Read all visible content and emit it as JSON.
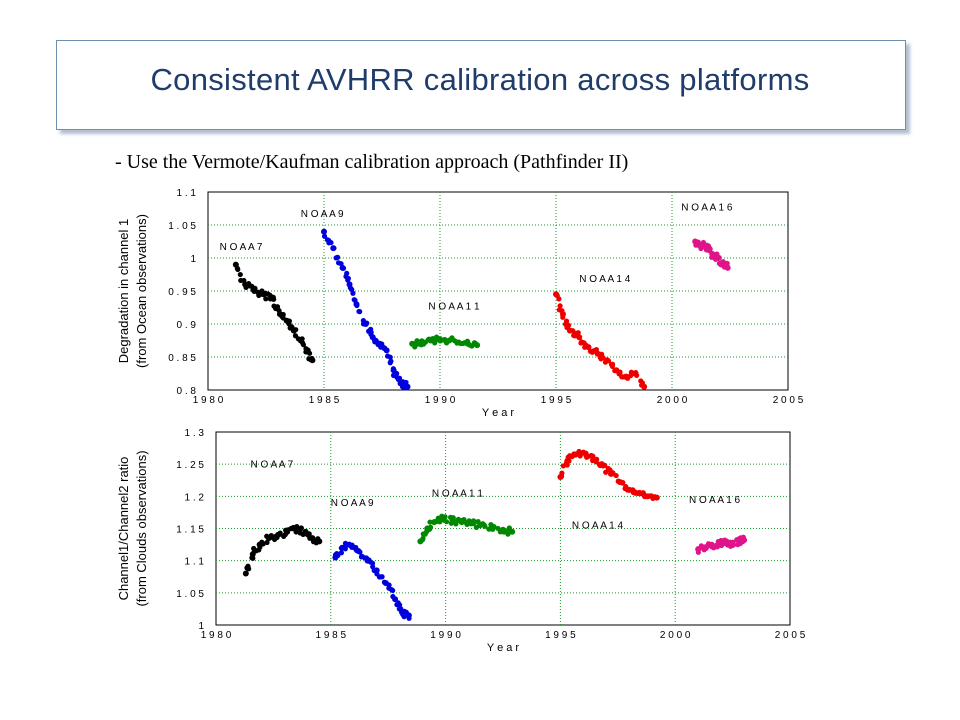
{
  "slide": {
    "title": "Consistent AVHRR calibration across platforms",
    "subtitle": "- Use the Vermote/Kaufman calibration approach (Pathfinder II)"
  },
  "colors": {
    "NOAA-7": "#000000",
    "NOAA-9": "#0000dd",
    "NOAA-11": "#008800",
    "NOAA-14": "#ee0000",
    "NOAA-16": "#e0148a",
    "title": "#1f3c6a",
    "grid": "#1a9a2a"
  },
  "chart_data": [
    {
      "type": "scatter",
      "ylabel": [
        "Degradation in channel 1",
        "(from Ocean observations)"
      ],
      "xlabel": "Y e a r",
      "xlim": [
        1980,
        2005
      ],
      "ylim": [
        0.8,
        1.1
      ],
      "xticks": [
        "1 9 8 0",
        "1 9 8 5",
        "1 9 9 0",
        "1 9 9 5",
        "2 0 0 0",
        "2 0 0 5"
      ],
      "yticks": [
        "0 . 8",
        "0 . 8 5",
        "0 . 9",
        "0 . 9 5",
        "1",
        "1 . 0 5",
        "1 . 1"
      ],
      "grid": true,
      "series": [
        {
          "name": "N O A A 7",
          "key": "NOAA-7",
          "label_at": [
            1980.5,
            1.012
          ],
          "x": [
            1981.2,
            1981.6,
            1982.0,
            1982.4,
            1982.8,
            1983.1,
            1983.4,
            1983.7,
            1984.0,
            1984.3,
            1984.5
          ],
          "y": [
            0.99,
            0.96,
            0.95,
            0.945,
            0.94,
            0.915,
            0.905,
            0.89,
            0.875,
            0.86,
            0.845
          ]
        },
        {
          "name": "N O A A 9",
          "key": "NOAA-9",
          "label_at": [
            1984.0,
            1.062
          ],
          "x": [
            1985.0,
            1985.4,
            1985.8,
            1986.1,
            1986.4,
            1986.8,
            1987.1,
            1987.4,
            1987.7,
            1988.0,
            1988.3,
            1988.6
          ],
          "y": [
            1.04,
            1.015,
            0.985,
            0.96,
            0.93,
            0.9,
            0.88,
            0.87,
            0.86,
            0.83,
            0.81,
            0.805
          ]
        },
        {
          "name": "N O A A 1 1",
          "key": "NOAA-11",
          "label_at": [
            1989.5,
            0.922
          ],
          "x": [
            1988.8,
            1989.2,
            1989.6,
            1990.0,
            1990.4,
            1990.8,
            1991.2,
            1991.6
          ],
          "y": [
            0.87,
            0.872,
            0.875,
            0.877,
            0.875,
            0.872,
            0.87,
            0.868
          ]
        },
        {
          "name": "N O A A 1 4",
          "key": "NOAA-14",
          "label_at": [
            1996.0,
            0.964
          ],
          "x": [
            1995.0,
            1995.3,
            1995.6,
            1996.0,
            1996.4,
            1996.8,
            1997.2,
            1997.6,
            1998.0,
            1998.4,
            1998.8
          ],
          "y": [
            0.945,
            0.915,
            0.89,
            0.88,
            0.865,
            0.855,
            0.845,
            0.83,
            0.82,
            0.825,
            0.805
          ]
        },
        {
          "name": "N O A A 1 6",
          "key": "NOAA-16",
          "label_at": [
            2000.4,
            1.072
          ],
          "x": [
            2001.0,
            2001.2,
            2001.4,
            2001.6,
            2001.8,
            2002.0,
            2002.2,
            2002.4
          ],
          "y": [
            1.025,
            1.02,
            1.018,
            1.012,
            1.005,
            1.0,
            0.99,
            0.985
          ]
        }
      ]
    },
    {
      "type": "scatter",
      "ylabel": [
        "Channel1/Channel2 ratio",
        "(from Clouds observations)"
      ],
      "xlabel": "Y e a r",
      "xlim": [
        1980,
        2005
      ],
      "ylim": [
        1.0,
        1.3
      ],
      "xticks": [
        "1 9 8 0",
        "1 9 8 5",
        "1 9 9 0",
        "1 9 9 5",
        "2 0 0 0",
        "2 0 0 5"
      ],
      "yticks": [
        "1",
        "1 . 0 5",
        "1 . 1",
        "1 . 1 5",
        "1 . 2",
        "1 . 2 5",
        "1 . 3"
      ],
      "grid": true,
      "series": [
        {
          "name": "N O A A 7",
          "key": "NOAA-7",
          "label_at": [
            1981.5,
            1.245
          ],
          "x": [
            1981.3,
            1981.6,
            1981.9,
            1982.3,
            1982.7,
            1983.1,
            1983.5,
            1983.9,
            1984.2,
            1984.5
          ],
          "y": [
            1.08,
            1.11,
            1.125,
            1.135,
            1.14,
            1.145,
            1.15,
            1.145,
            1.135,
            1.13
          ]
        },
        {
          "name": "N O A A 9",
          "key": "NOAA-9",
          "label_at": [
            1985.0,
            1.185
          ],
          "x": [
            1985.2,
            1985.5,
            1985.8,
            1986.2,
            1986.6,
            1987.0,
            1987.4,
            1987.8,
            1988.1,
            1988.4
          ],
          "y": [
            1.105,
            1.12,
            1.125,
            1.115,
            1.1,
            1.085,
            1.065,
            1.04,
            1.02,
            1.015
          ]
        },
        {
          "name": "N O A A 1 1",
          "key": "NOAA-11",
          "label_at": [
            1989.4,
            1.2
          ],
          "x": [
            1988.9,
            1989.2,
            1989.5,
            1989.9,
            1990.3,
            1990.7,
            1991.1,
            1991.5,
            1992.0,
            1992.5,
            1992.9
          ],
          "y": [
            1.13,
            1.15,
            1.16,
            1.165,
            1.162,
            1.16,
            1.158,
            1.155,
            1.15,
            1.148,
            1.145
          ]
        },
        {
          "name": "N O A A 1 4",
          "key": "NOAA-14",
          "label_at": [
            1995.5,
            1.15
          ],
          "x": [
            1995.0,
            1995.3,
            1995.6,
            1996.0,
            1996.4,
            1996.8,
            1997.2,
            1997.6,
            1998.0,
            1998.4,
            1998.8,
            1999.2
          ],
          "y": [
            1.23,
            1.255,
            1.265,
            1.268,
            1.262,
            1.25,
            1.235,
            1.222,
            1.21,
            1.205,
            1.2,
            1.198
          ]
        },
        {
          "name": "N O A A 1 6",
          "key": "NOAA-16",
          "label_at": [
            2000.6,
            1.19
          ],
          "x": [
            2001.0,
            2001.3,
            2001.6,
            2001.9,
            2002.2,
            2002.5,
            2002.8,
            2003.0
          ],
          "y": [
            1.118,
            1.12,
            1.122,
            1.125,
            1.127,
            1.128,
            1.13,
            1.132
          ]
        }
      ]
    }
  ]
}
